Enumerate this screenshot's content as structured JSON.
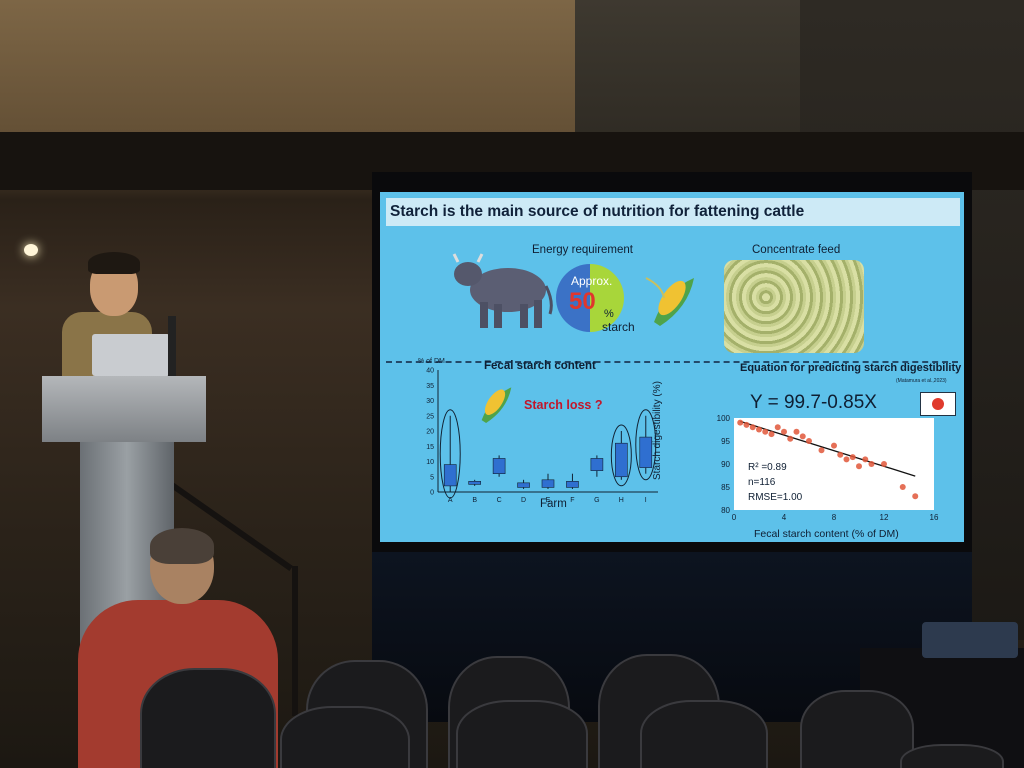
{
  "slide": {
    "title": "Starch is the main source of nutrition for fattening cattle",
    "energy_requirement_label": "Energy requirement",
    "approx_label": "Approx.",
    "approx_value": "50",
    "percent_sign": "%",
    "starch_word": "starch",
    "concentrate_feed_label": "Concentrate feed",
    "fecal_starch_title": "Fecal starch content",
    "starch_loss_label": "Starch loss ?",
    "equation_title": "Equation for predicting starch digestibility",
    "citation": "(Matamura et al.,2023)",
    "equation": "Y = 99.7-0.85X",
    "colors": {
      "slide_bg": "#5dc1ea",
      "title_bar": "#cdeaf6",
      "approx_value": "#e0362c",
      "pie_blue": "#3b72c6",
      "pie_green": "#a8d63a",
      "dot_red": "#e0573a"
    }
  },
  "chart_data": [
    {
      "type": "box",
      "title": "Fecal starch content",
      "ylabel": "% of DM",
      "xlabel": "Farm",
      "ylim": [
        0,
        40
      ],
      "yticks": [
        "0",
        "5",
        "10",
        "15",
        "20",
        "25",
        "30",
        "35",
        "40"
      ],
      "categories": [
        "A",
        "B",
        "C",
        "D",
        "E",
        "F",
        "G",
        "H",
        "I"
      ],
      "boxes": [
        {
          "q1": 2,
          "q3": 9,
          "min": 0,
          "max": 25
        },
        {
          "q1": 2.5,
          "q3": 3.5,
          "min": 2,
          "max": 4
        },
        {
          "q1": 6,
          "q3": 11,
          "min": 5,
          "max": 12
        },
        {
          "q1": 1.5,
          "q3": 3,
          "min": 1,
          "max": 4
        },
        {
          "q1": 1.5,
          "q3": 4,
          "min": 1,
          "max": 6
        },
        {
          "q1": 1.5,
          "q3": 3.5,
          "min": 1,
          "max": 6
        },
        {
          "q1": 7,
          "q3": 11,
          "min": 5,
          "max": 12
        },
        {
          "q1": 5,
          "q3": 16,
          "min": 4,
          "max": 20
        },
        {
          "q1": 8,
          "q3": 18,
          "min": 6,
          "max": 25
        }
      ],
      "circled": [
        "A",
        "H",
        "I"
      ]
    },
    {
      "type": "scatter",
      "xlabel": "Fecal starch content (% of DM)",
      "ylabel": "Starch digestibility (%)",
      "xlim": [
        0,
        16
      ],
      "ylim": [
        80,
        100
      ],
      "xticks": [
        "0",
        "4",
        "8",
        "12",
        "16"
      ],
      "yticks": [
        "80",
        "85",
        "90",
        "95",
        "100"
      ],
      "stats": {
        "r2": "R² =0.89",
        "n": "n=116",
        "rmse": "RMSE=1.00"
      },
      "fit": {
        "intercept": 99.7,
        "slope": -0.85
      },
      "x": [
        0.5,
        1,
        1.5,
        2,
        2.5,
        3,
        3.5,
        4,
        4.5,
        5,
        5.5,
        6,
        7,
        8,
        8.5,
        9,
        9.5,
        10,
        10.5,
        11,
        12,
        13.5,
        14.5
      ],
      "y": [
        99,
        98.5,
        98,
        97.5,
        97,
        96.5,
        98,
        97,
        95.5,
        97,
        96,
        95,
        93,
        94,
        92,
        91,
        91.5,
        89.5,
        91,
        90,
        90,
        85,
        83
      ]
    }
  ]
}
